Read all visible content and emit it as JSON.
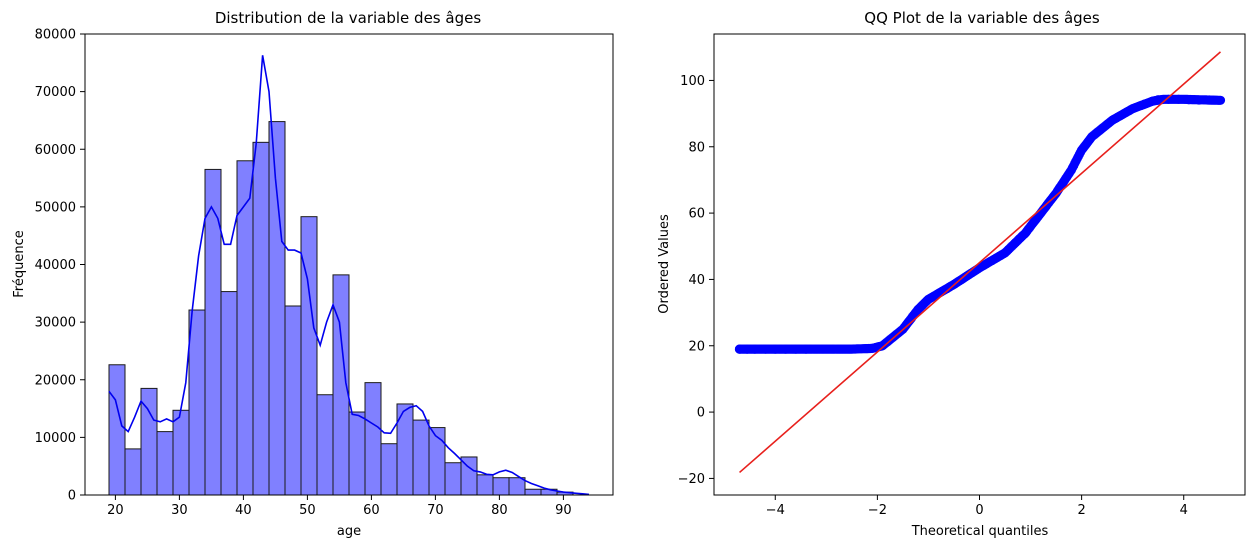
{
  "chart_data": [
    {
      "type": "bar",
      "title": "Distribution de la variable des âges",
      "xlabel": "age",
      "ylabel": "Fréquence",
      "xlim": [
        15.25,
        97.75
      ],
      "ylim": [
        0,
        80000
      ],
      "xticks": [
        20,
        30,
        40,
        50,
        60,
        70,
        80,
        90
      ],
      "yticks": [
        0,
        10000,
        20000,
        30000,
        40000,
        50000,
        60000,
        70000,
        80000
      ],
      "bin_start": 19,
      "bin_width": 2.5,
      "values": [
        22600,
        8000,
        18500,
        11000,
        14700,
        32100,
        56500,
        35300,
        58000,
        61200,
        64800,
        32800,
        48300,
        17400,
        38200,
        14400,
        19500,
        8900,
        15800,
        13000,
        11700,
        5600,
        6600,
        3500,
        3000,
        3000,
        1000,
        1000,
        500
      ],
      "colors": {
        "fill": "#8080ff",
        "edge": "#1a1a1a",
        "kde": "#0000ee"
      },
      "kde": {
        "x": [
          19,
          20,
          21,
          22,
          23,
          24,
          25,
          26,
          27,
          28,
          29,
          30,
          31,
          32,
          33,
          34,
          35,
          36,
          37,
          38,
          39,
          40,
          41,
          42,
          43,
          44,
          45,
          46,
          47,
          48,
          49,
          50,
          51,
          52,
          53,
          54,
          55,
          56,
          57,
          58,
          59,
          60,
          61,
          62,
          63,
          64,
          65,
          66,
          67,
          68,
          69,
          70,
          71,
          72,
          73,
          74,
          75,
          76,
          77,
          78,
          79,
          80,
          81,
          82,
          83,
          84,
          85,
          86,
          87,
          88,
          89,
          90,
          91,
          92,
          93,
          94
        ],
        "y": [
          18000,
          16500,
          12000,
          11000,
          13500,
          16300,
          15000,
          13000,
          12700,
          13200,
          12700,
          13500,
          19500,
          32000,
          41500,
          48000,
          50000,
          48000,
          43500,
          43500,
          48500,
          50000,
          51500,
          61000,
          76300,
          70000,
          55000,
          44000,
          42500,
          42500,
          42000,
          37500,
          29000,
          26000,
          30000,
          33000,
          30000,
          19500,
          14000,
          13800,
          13200,
          12500,
          11800,
          10800,
          10700,
          12500,
          14500,
          15200,
          15500,
          14500,
          12000,
          10300,
          9500,
          8200,
          7200,
          6100,
          5000,
          4200,
          4000,
          3600,
          3500,
          4000,
          4300,
          3900,
          3200,
          2500,
          2000,
          1600,
          1200,
          900,
          700,
          500,
          400,
          300,
          200,
          100
        ]
      }
    },
    {
      "type": "scatter",
      "title": "QQ Plot de la variable des âges",
      "xlabel": "Theoretical quantiles",
      "ylabel": "Ordered Values",
      "xlim": [
        -5.2,
        5.2
      ],
      "ylim": [
        -25,
        114
      ],
      "xticks": [
        -4,
        -2,
        0,
        2,
        4
      ],
      "yticks": [
        -20,
        0,
        20,
        40,
        60,
        80,
        100
      ],
      "colors": {
        "points": "#0000ff",
        "line": "#e8201c"
      },
      "reference_line": {
        "x": [
          -4.7,
          4.72
        ],
        "y": [
          -18.2,
          108.6
        ]
      },
      "quantile_curve": {
        "x": [
          -4.7,
          -4.2,
          -3.5,
          -3.0,
          -2.5,
          -2.1,
          -1.9,
          -1.5,
          -1.2,
          -1.0,
          -0.5,
          0.0,
          0.5,
          0.9,
          1.2,
          1.5,
          1.8,
          2.0,
          2.2,
          2.6,
          3.0,
          3.4,
          3.6,
          4.0,
          4.72
        ],
        "y": [
          19,
          19,
          19,
          19,
          19,
          19.2,
          20,
          25,
          31,
          34,
          38.5,
          43.5,
          48,
          54,
          60,
          66,
          73,
          79,
          83,
          88,
          91.5,
          93.8,
          94.3,
          94.3,
          94
        ]
      },
      "tail_points": {
        "x": [
          -4.7,
          -4.55,
          -4.4,
          -4.2,
          -4.0,
          -3.8,
          -3.6,
          -3.4,
          3.5,
          3.7,
          3.9,
          4.1,
          4.3,
          4.5,
          4.72
        ],
        "y": [
          19,
          19,
          19,
          19,
          19,
          19,
          19,
          19,
          94.2,
          94.3,
          94.3,
          94.2,
          94.1,
          94.1,
          94
        ]
      }
    }
  ]
}
